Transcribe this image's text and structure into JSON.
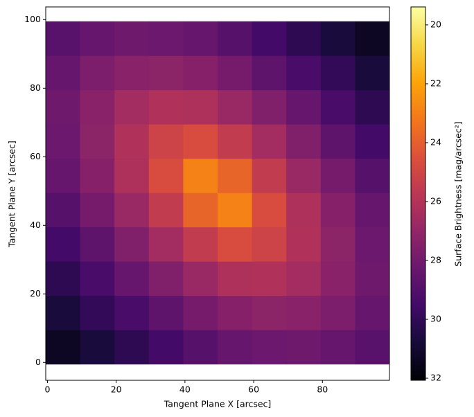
{
  "chart_data": {
    "type": "heatmap",
    "xlabel": "Tangent Plane X [arcsec]",
    "ylabel": "Tangent Plane Y [arcsec]",
    "colorbar_label": "Surface Brightness [mag/arcsec²]",
    "colormap": "inferno",
    "x": [
      4.5,
      14.5,
      24.5,
      34.5,
      44.5,
      54.5,
      64.5,
      74.5,
      84.5,
      94.5
    ],
    "y": [
      4.5,
      14.5,
      24.5,
      34.5,
      44.5,
      54.5,
      64.5,
      74.5,
      84.5,
      94.5
    ],
    "z": [
      [
        31.3,
        30.7,
        30.1,
        29.5,
        28.9,
        28.4,
        28.2,
        28.1,
        28.4,
        28.8
      ],
      [
        30.7,
        30.0,
        29.3,
        28.6,
        27.9,
        27.4,
        27.2,
        27.3,
        27.7,
        28.4
      ],
      [
        30.1,
        29.3,
        28.4,
        27.6,
        26.8,
        26.2,
        26.1,
        26.5,
        27.3,
        28.1
      ],
      [
        29.5,
        28.6,
        27.6,
        26.5,
        25.5,
        24.7,
        25.1,
        26.1,
        27.2,
        28.2
      ],
      [
        28.9,
        27.9,
        26.8,
        25.5,
        23.8,
        22.9,
        24.7,
        26.2,
        27.4,
        28.4
      ],
      [
        28.4,
        27.4,
        26.2,
        24.7,
        22.9,
        23.8,
        25.5,
        26.8,
        27.9,
        28.9
      ],
      [
        28.2,
        27.2,
        26.1,
        25.1,
        24.7,
        25.5,
        26.5,
        27.6,
        28.6,
        29.5
      ],
      [
        28.1,
        27.3,
        26.5,
        26.1,
        26.2,
        26.8,
        27.6,
        28.4,
        29.3,
        30.1
      ],
      [
        28.4,
        27.7,
        27.3,
        27.2,
        27.4,
        27.9,
        28.6,
        29.3,
        30.0,
        30.7
      ],
      [
        28.8,
        28.4,
        28.1,
        28.2,
        28.4,
        28.9,
        29.5,
        30.1,
        30.7,
        31.3
      ]
    ],
    "xlim": [
      -0.5,
      99.5
    ],
    "ylim": [
      -5.2,
      103.7
    ],
    "xticks": [
      0,
      20,
      40,
      60,
      80
    ],
    "yticks": [
      0,
      20,
      40,
      60,
      80,
      100
    ],
    "clim": [
      32.07,
      19.39
    ],
    "cticks": [
      20,
      22,
      24,
      26,
      28,
      30,
      32
    ]
  }
}
